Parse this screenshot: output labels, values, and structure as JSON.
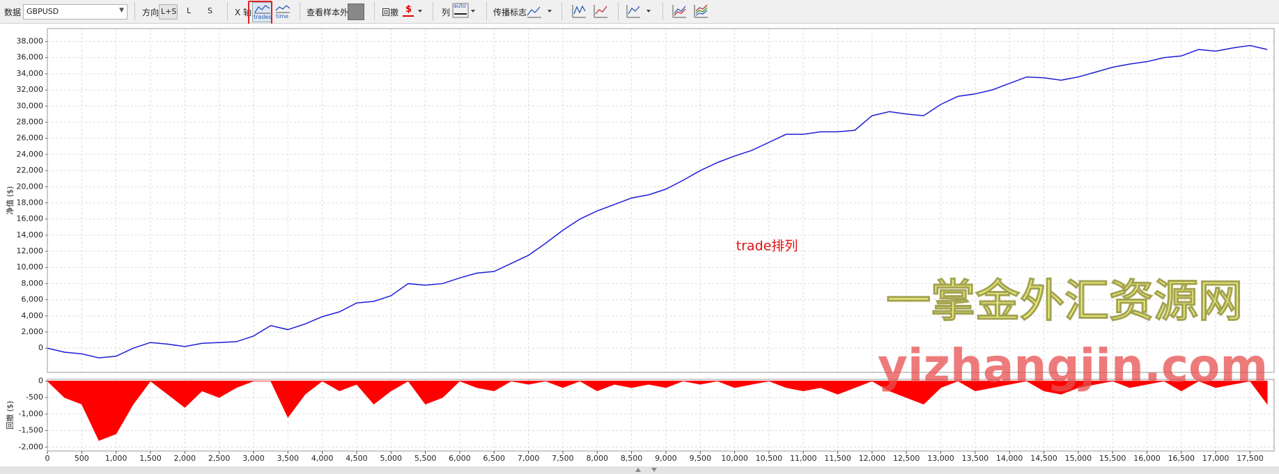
{
  "toolbar": {
    "data_label": "数据",
    "symbol": "GBPUSD",
    "direction_label": "方向",
    "direction_options": [
      "L+S",
      "L",
      "S"
    ],
    "x_axis_label": "X 轴",
    "x_axis_options": [
      "trades",
      "time"
    ],
    "out_of_sample_label": "查看样本外",
    "drawdown_label": "回撤",
    "drawdown_unit": "$",
    "columns_label": "列",
    "columns_option": "auto",
    "spread_label": "传播标志"
  },
  "watermark": {
    "line1": "一掌金外汇资源网",
    "line2": "yizhangjin.com"
  },
  "chart_data": [
    {
      "type": "line",
      "y_label": "净值 ($)",
      "annotation": "trade排列",
      "color": "#1c1cd8",
      "grid": true,
      "x": [
        0,
        250,
        500,
        750,
        1000,
        1250,
        1500,
        1750,
        2000,
        2250,
        2500,
        2750,
        3000,
        3250,
        3500,
        3750,
        4000,
        4250,
        4500,
        4750,
        5000,
        5250,
        5500,
        5750,
        6000,
        6250,
        6500,
        6750,
        7000,
        7250,
        7500,
        7750,
        8000,
        8250,
        8500,
        8750,
        9000,
        9250,
        9500,
        9750,
        10000,
        10250,
        10500,
        10750,
        11000,
        11250,
        11500,
        11750,
        12000,
        12250,
        12500,
        12750,
        13000,
        13250,
        13500,
        13750,
        14000,
        14250,
        14500,
        14750,
        15000,
        15250,
        15500,
        15750,
        16000,
        16250,
        16500,
        16750,
        17000,
        17250,
        17500,
        17750
      ],
      "values": [
        0,
        -500,
        -700,
        -1200,
        -1000,
        0,
        700,
        500,
        200,
        600,
        700,
        800,
        1500,
        2800,
        2300,
        3000,
        3900,
        4500,
        5600,
        5800,
        6500,
        8000,
        7800,
        8000,
        8700,
        9300,
        9500,
        10500,
        11500,
        13000,
        14600,
        16000,
        17000,
        17800,
        18600,
        19000,
        19700,
        20800,
        22000,
        23000,
        23800,
        24500,
        25500,
        26500,
        26500,
        26800,
        26800,
        27000,
        28800,
        29300,
        29000,
        28800,
        30200,
        31200,
        31500,
        32000,
        32800,
        33600,
        33500,
        33200,
        33600,
        34200,
        34800,
        35200,
        35500,
        36000,
        36200,
        37000,
        36800,
        37200,
        37500,
        37000
      ],
      "xlim": [
        0,
        17850
      ],
      "ylim": [
        -3000,
        39600
      ],
      "yticks": [
        0,
        {
          "value": 2000,
          "label": "2,000"
        },
        {
          "value": 4000,
          "label": "4,000"
        },
        {
          "value": 6000,
          "label": "6,000"
        },
        {
          "value": 8000,
          "label": "8,000"
        },
        {
          "value": 10000,
          "label": "10,000"
        },
        {
          "value": 12000,
          "label": "12,000"
        },
        {
          "value": 14000,
          "label": "14,000"
        },
        {
          "value": 16000,
          "label": "16,000"
        },
        {
          "value": 18000,
          "label": "18,000"
        },
        {
          "value": 20000,
          "label": "20,000"
        },
        {
          "value": 22000,
          "label": "22,000"
        },
        {
          "value": 24000,
          "label": "24,000"
        },
        {
          "value": 26000,
          "label": "26,000"
        },
        {
          "value": 28000,
          "label": "28,000"
        },
        {
          "value": 30000,
          "label": "30,000"
        },
        {
          "value": 32000,
          "label": "32,000"
        },
        {
          "value": 34000,
          "label": "34,000"
        },
        {
          "value": 36000,
          "label": "36,000"
        },
        {
          "value": 38000,
          "label": "38,000"
        }
      ]
    },
    {
      "type": "area",
      "y_label": "回撤 ($)",
      "color": "#ff0000",
      "grid": true,
      "x": [
        0,
        250,
        500,
        750,
        1000,
        1250,
        1500,
        1750,
        2000,
        2250,
        2500,
        2750,
        3000,
        3250,
        3500,
        3750,
        4000,
        4250,
        4500,
        4750,
        5000,
        5250,
        5500,
        5750,
        6000,
        6250,
        6500,
        6750,
        7000,
        7250,
        7500,
        7750,
        8000,
        8250,
        8500,
        8750,
        9000,
        9250,
        9500,
        9750,
        10000,
        10250,
        10500,
        10750,
        11000,
        11250,
        11500,
        11750,
        12000,
        12250,
        12500,
        12750,
        13000,
        13250,
        13500,
        13750,
        14000,
        14250,
        14500,
        14750,
        15000,
        15250,
        15500,
        15750,
        16000,
        16250,
        16500,
        16750,
        17000,
        17250,
        17500,
        17750
      ],
      "values": [
        0,
        -500,
        -700,
        -1800,
        -1600,
        -700,
        0,
        -400,
        -800,
        -300,
        -500,
        -200,
        0,
        0,
        -1100,
        -400,
        0,
        -300,
        -100,
        -700,
        -300,
        0,
        -700,
        -500,
        0,
        -200,
        -300,
        0,
        -100,
        0,
        -200,
        0,
        -300,
        -100,
        -200,
        -100,
        -200,
        0,
        -100,
        0,
        -200,
        -100,
        0,
        -200,
        -300,
        -200,
        -400,
        -200,
        0,
        -300,
        -500,
        -700,
        -200,
        0,
        -300,
        -200,
        -100,
        0,
        -300,
        -400,
        -200,
        -100,
        0,
        -200,
        -100,
        0,
        -300,
        0,
        -200,
        -100,
        0,
        -700
      ],
      "xlim": [
        0,
        17850
      ],
      "ylim": [
        -2120,
        50
      ],
      "yticks": [
        0,
        -500,
        {
          "value": -1000,
          "label": "-1,000"
        },
        {
          "value": -1500,
          "label": "-1,500"
        },
        {
          "value": -2000,
          "label": "-2,000"
        }
      ],
      "xticks": [
        0,
        500,
        {
          "value": 1000,
          "label": "1,000"
        },
        {
          "value": 1500,
          "label": "1,500"
        },
        {
          "value": 2000,
          "label": "2,000"
        },
        {
          "value": 2500,
          "label": "2,500"
        },
        {
          "value": 3000,
          "label": "3,000"
        },
        {
          "value": 3500,
          "label": "3,500"
        },
        {
          "value": 4000,
          "label": "4,000"
        },
        {
          "value": 4500,
          "label": "4,500"
        },
        {
          "value": 5000,
          "label": "5,000"
        },
        {
          "value": 5500,
          "label": "5,500"
        },
        {
          "value": 6000,
          "label": "6,000"
        },
        {
          "value": 6500,
          "label": "6,500"
        },
        {
          "value": 7000,
          "label": "7,000"
        },
        {
          "value": 7500,
          "label": "7,500"
        },
        {
          "value": 8000,
          "label": "8,000"
        },
        {
          "value": 8500,
          "label": "8,500"
        },
        {
          "value": 9000,
          "label": "9,000"
        },
        {
          "value": 9500,
          "label": "9,500"
        },
        {
          "value": 10000,
          "label": "10,000"
        },
        {
          "value": 10500,
          "label": "10,500"
        },
        {
          "value": 11000,
          "label": "11,000"
        },
        {
          "value": 11500,
          "label": "11,500"
        },
        {
          "value": 12000,
          "label": "12,000"
        },
        {
          "value": 12500,
          "label": "12,500"
        },
        {
          "value": 13000,
          "label": "13,000"
        },
        {
          "value": 13500,
          "label": "13,500"
        },
        {
          "value": 14000,
          "label": "14,000"
        },
        {
          "value": 14500,
          "label": "14,500"
        },
        {
          "value": 15000,
          "label": "15,000"
        },
        {
          "value": 15500,
          "label": "15,500"
        },
        {
          "value": 16000,
          "label": "16,000"
        },
        {
          "value": 16500,
          "label": "16,500"
        },
        {
          "value": 17000,
          "label": "17,000"
        },
        {
          "value": 17500,
          "label": "17,500"
        }
      ]
    }
  ]
}
